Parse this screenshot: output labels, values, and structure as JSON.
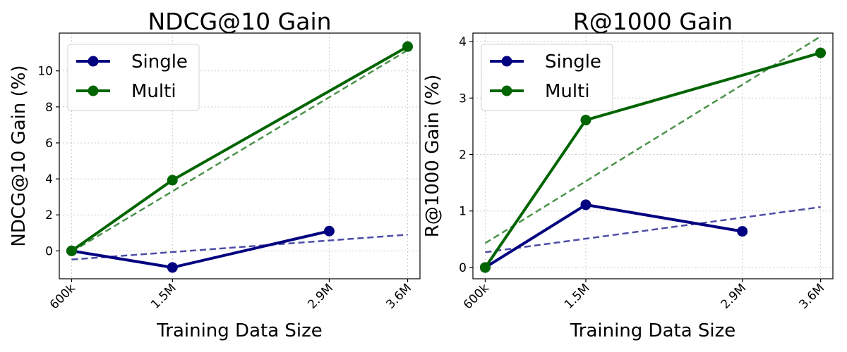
{
  "chart_data": [
    {
      "type": "line",
      "title": "NDCG@10 Gain",
      "xlabel": "Training Data Size",
      "ylabel": "NDCG@10 Gain (%)",
      "x": [
        0.6,
        1.5,
        2.9,
        3.6
      ],
      "x_tick_labels": [
        "600k",
        "1.5M",
        "2.9M",
        "3.6M"
      ],
      "xlim": [
        0.49,
        3.71
      ],
      "ylim": [
        -1.55,
        12.1
      ],
      "yticks": [
        0,
        2,
        4,
        6,
        8,
        10
      ],
      "y_tick_labels": [
        "0",
        "2",
        "4",
        "6",
        "8",
        "10"
      ],
      "grid": true,
      "legend_position": "top-left",
      "series": [
        {
          "name": "Single",
          "color": "#000080",
          "x": [
            0.6,
            1.5,
            2.9
          ],
          "values": [
            0.0,
            -0.92,
            1.1
          ]
        },
        {
          "name": "Multi",
          "color": "#006400",
          "x": [
            0.6,
            1.5,
            3.6
          ],
          "values": [
            0.0,
            3.93,
            11.35
          ]
        }
      ],
      "trendlines": [
        {
          "color": "#4c4ca6",
          "x": [
            0.6,
            3.6
          ],
          "values": [
            -0.48,
            0.9
          ]
        },
        {
          "color": "#4c934c",
          "x": [
            0.6,
            3.6
          ],
          "values": [
            -0.05,
            11.15
          ]
        }
      ]
    },
    {
      "type": "line",
      "title": "R@1000 Gain",
      "xlabel": "Training Data Size",
      "ylabel": "R@1000 Gain (%)",
      "x": [
        0.6,
        1.5,
        2.9,
        3.6
      ],
      "x_tick_labels": [
        "600k",
        "1.5M",
        "2.9M",
        "3.6M"
      ],
      "xlim": [
        0.49,
        3.71
      ],
      "ylim": [
        -0.2,
        4.15
      ],
      "yticks": [
        0,
        1,
        2,
        3,
        4
      ],
      "y_tick_labels": [
        "0",
        "1",
        "2",
        "3",
        "4"
      ],
      "grid": true,
      "legend_position": "top-left",
      "series": [
        {
          "name": "Single",
          "color": "#000080",
          "x": [
            0.6,
            1.5,
            2.9
          ],
          "values": [
            0.0,
            1.11,
            0.64
          ]
        },
        {
          "name": "Multi",
          "color": "#006400",
          "x": [
            0.6,
            1.5,
            3.6
          ],
          "values": [
            0.0,
            2.61,
            3.8
          ]
        }
      ],
      "trendlines": [
        {
          "color": "#4c4ca6",
          "x": [
            0.6,
            3.6
          ],
          "values": [
            0.27,
            1.07
          ]
        },
        {
          "color": "#4c934c",
          "x": [
            0.6,
            3.6
          ],
          "values": [
            0.43,
            4.09
          ]
        }
      ]
    }
  ]
}
